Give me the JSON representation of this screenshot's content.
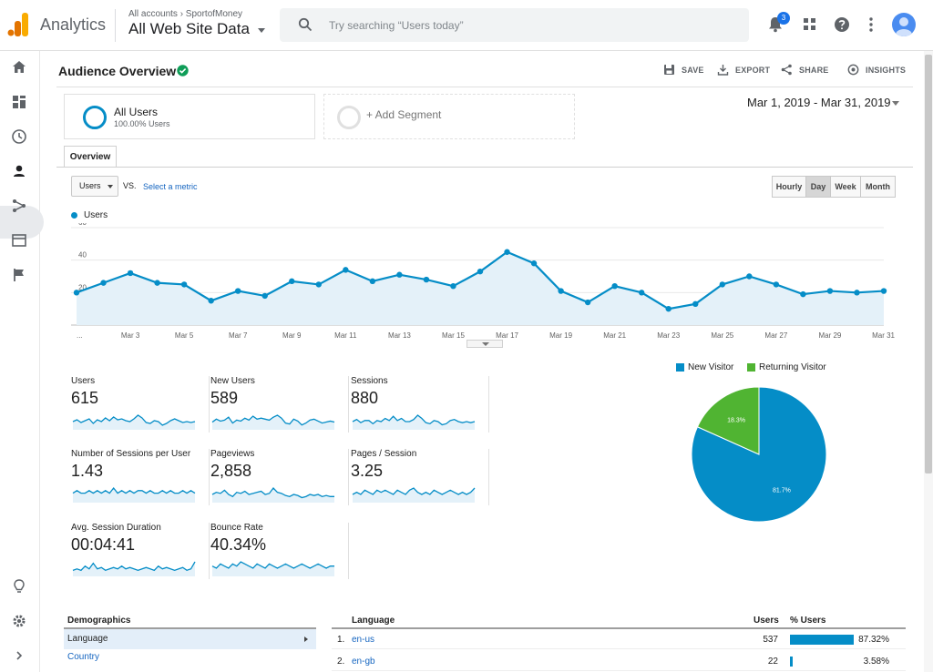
{
  "header": {
    "app_name": "Analytics",
    "account_crumb": "All accounts › SportofMoney",
    "view_name": "All Web Site Data",
    "search_placeholder": "Try searching “Users today”",
    "notification_count": "3"
  },
  "nav": {
    "items": [
      "home-icon",
      "customization-icon",
      "realtime-icon",
      "audience-icon",
      "acquisition-icon",
      "behavior-icon",
      "conversions-icon",
      "discover-icon",
      "admin-icon",
      "expand-icon"
    ],
    "active": "audience-icon"
  },
  "page": {
    "title": "Audience Overview",
    "actions": {
      "save": "SAVE",
      "export": "EXPORT",
      "share": "SHARE",
      "insights": "INSIGHTS"
    },
    "date_range": "Mar 1, 2019 - Mar 31, 2019"
  },
  "segments": {
    "all_users": {
      "name": "All Users",
      "sub": "100.00% Users"
    },
    "add_segment": "+ Add Segment"
  },
  "tabs": {
    "overview": "Overview"
  },
  "controls": {
    "metric": "Users",
    "vs": "VS.",
    "select_metric": "Select a metric",
    "granularity": [
      "Hourly",
      "Day",
      "Week",
      "Month"
    ],
    "active_granularity": "Day"
  },
  "colors": {
    "primary": "#058dc7",
    "returning": "#50b432",
    "area_fill": "#e4f1f9"
  },
  "chart_data": [
    {
      "type": "line",
      "series": [
        {
          "name": "Users",
          "values": [
            20,
            26,
            32,
            26,
            25,
            15,
            21,
            18,
            27,
            25,
            34,
            27,
            31,
            28,
            24,
            33,
            45,
            38,
            21,
            14,
            24,
            20,
            10,
            13,
            25,
            30,
            25,
            19,
            21,
            20,
            21
          ]
        }
      ],
      "x": [
        "Mar 1",
        "Mar 2",
        "Mar 3",
        "Mar 4",
        "Mar 5",
        "Mar 6",
        "Mar 7",
        "Mar 8",
        "Mar 9",
        "Mar 10",
        "Mar 11",
        "Mar 12",
        "Mar 13",
        "Mar 14",
        "Mar 15",
        "Mar 16",
        "Mar 17",
        "Mar 18",
        "Mar 19",
        "Mar 20",
        "Mar 21",
        "Mar 22",
        "Mar 23",
        "Mar 24",
        "Mar 25",
        "Mar 26",
        "Mar 27",
        "Mar 28",
        "Mar 29",
        "Mar 30",
        "Mar 31"
      ],
      "x_tick_labels": [
        "...",
        "Mar 3",
        "Mar 5",
        "Mar 7",
        "Mar 9",
        "Mar 11",
        "Mar 13",
        "Mar 15",
        "Mar 17",
        "Mar 19",
        "Mar 21",
        "Mar 23",
        "Mar 25",
        "Mar 27",
        "Mar 29",
        "Mar 31"
      ],
      "y_ticks": [
        20,
        40,
        60
      ],
      "ylim": [
        0,
        60
      ],
      "grid": true
    },
    {
      "type": "pie",
      "labels": [
        "New Visitor",
        "Returning Visitor"
      ],
      "values": [
        81.7,
        18.3
      ],
      "value_labels": [
        "81.7%",
        "18.3%"
      ],
      "legend": "top"
    }
  ],
  "metrics": [
    {
      "label": "Users",
      "value": "615",
      "spark": [
        10,
        12,
        9,
        11,
        13,
        8,
        12,
        10,
        14,
        11,
        15,
        12,
        13,
        11,
        10,
        13,
        17,
        14,
        9,
        8,
        11,
        10,
        6,
        8,
        11,
        13,
        11,
        9,
        10,
        9,
        10
      ]
    },
    {
      "label": "New Users",
      "value": "589",
      "spark": [
        9,
        12,
        10,
        11,
        14,
        8,
        11,
        10,
        13,
        11,
        15,
        12,
        13,
        12,
        11,
        14,
        16,
        13,
        8,
        7,
        12,
        10,
        6,
        8,
        11,
        12,
        10,
        8,
        9,
        10,
        9
      ]
    },
    {
      "label": "Sessions",
      "value": "880",
      "spark": [
        11,
        13,
        10,
        12,
        12,
        9,
        12,
        11,
        14,
        12,
        16,
        12,
        14,
        11,
        11,
        13,
        17,
        14,
        10,
        9,
        12,
        11,
        8,
        9,
        12,
        13,
        11,
        10,
        11,
        10,
        11
      ]
    },
    {
      "label": "Number of Sessions per User",
      "value": "1.43",
      "spark": [
        10,
        11,
        10,
        10,
        11,
        10,
        11,
        10,
        11,
        10,
        12,
        10,
        11,
        10,
        11,
        10,
        11,
        11,
        10,
        11,
        10,
        10,
        11,
        10,
        11,
        10,
        10,
        11,
        10,
        11,
        10
      ]
    },
    {
      "label": "Pageviews",
      "value": "2,858",
      "spark": [
        10,
        12,
        11,
        14,
        10,
        8,
        12,
        11,
        13,
        10,
        11,
        12,
        13,
        10,
        11,
        16,
        12,
        11,
        9,
        8,
        10,
        9,
        7,
        8,
        10,
        9,
        10,
        8,
        9,
        8,
        8
      ]
    },
    {
      "label": "Pages / Session",
      "value": "3.25",
      "spark": [
        10,
        11,
        10,
        12,
        11,
        10,
        12,
        11,
        12,
        11,
        10,
        12,
        11,
        10,
        12,
        13,
        11,
        10,
        11,
        10,
        12,
        11,
        10,
        11,
        12,
        11,
        10,
        11,
        10,
        11,
        13
      ]
    },
    {
      "label": "Avg. Session Duration",
      "value": "00:04:41",
      "spark": [
        9,
        10,
        9,
        12,
        10,
        14,
        10,
        11,
        9,
        10,
        11,
        10,
        12,
        10,
        11,
        10,
        9,
        10,
        11,
        10,
        9,
        12,
        10,
        11,
        10,
        9,
        10,
        11,
        9,
        10,
        15
      ]
    },
    {
      "label": "Bounce Rate",
      "value": "40.34%",
      "spark": [
        11,
        10,
        12,
        11,
        10,
        12,
        11,
        13,
        12,
        11,
        10,
        12,
        11,
        10,
        12,
        11,
        10,
        11,
        12,
        11,
        10,
        11,
        12,
        11,
        10,
        11,
        12,
        11,
        10,
        11,
        11
      ]
    }
  ],
  "demographics": {
    "header": "Demographics",
    "active": "Language",
    "next": "Country"
  },
  "language_table": {
    "headers": {
      "language": "Language",
      "users": "Users",
      "pct": "% Users"
    },
    "rows": [
      {
        "idx": "1.",
        "name": "en-us",
        "users": "537",
        "pct": "87.32%",
        "share": 87.32
      },
      {
        "idx": "2.",
        "name": "en-gb",
        "users": "22",
        "pct": "3.58%",
        "share": 3.58
      }
    ]
  }
}
